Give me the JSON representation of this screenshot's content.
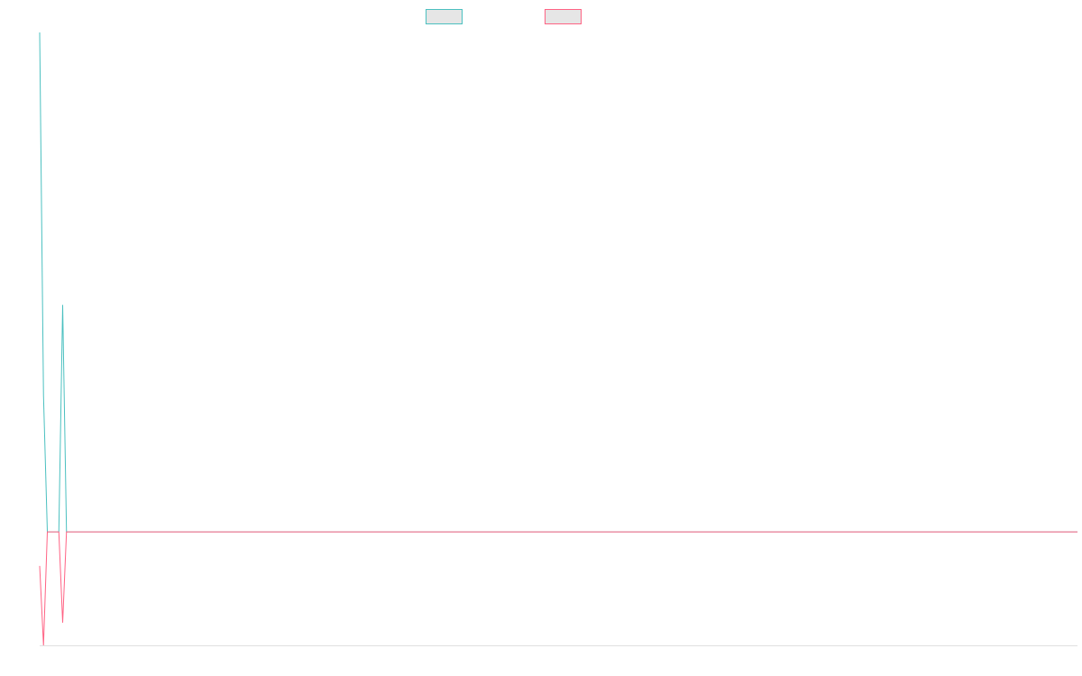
{
  "chart_data": {
    "type": "line",
    "title": "",
    "xlabel": "",
    "ylabel": "",
    "x": [
      0,
      1,
      2,
      3,
      4,
      5,
      6,
      7,
      8,
      240
    ],
    "series": [
      {
        "name": "",
        "color": "#4bc0c0",
        "values": [
          2.2,
          0.6,
          0,
          0,
          0,
          0,
          1.0,
          0,
          0,
          0
        ]
      },
      {
        "name": "",
        "color": "#ff6384",
        "values": [
          -0.15,
          -0.5,
          0,
          0,
          0,
          0,
          -0.4,
          0,
          0,
          0
        ]
      }
    ],
    "legend": {
      "position": "top",
      "fill": "#e6e6e6"
    },
    "xlim": [
      0,
      240
    ],
    "ylim": [
      -0.5,
      2.2
    ],
    "grid": false,
    "baseline_color": "#e0e0e0"
  }
}
